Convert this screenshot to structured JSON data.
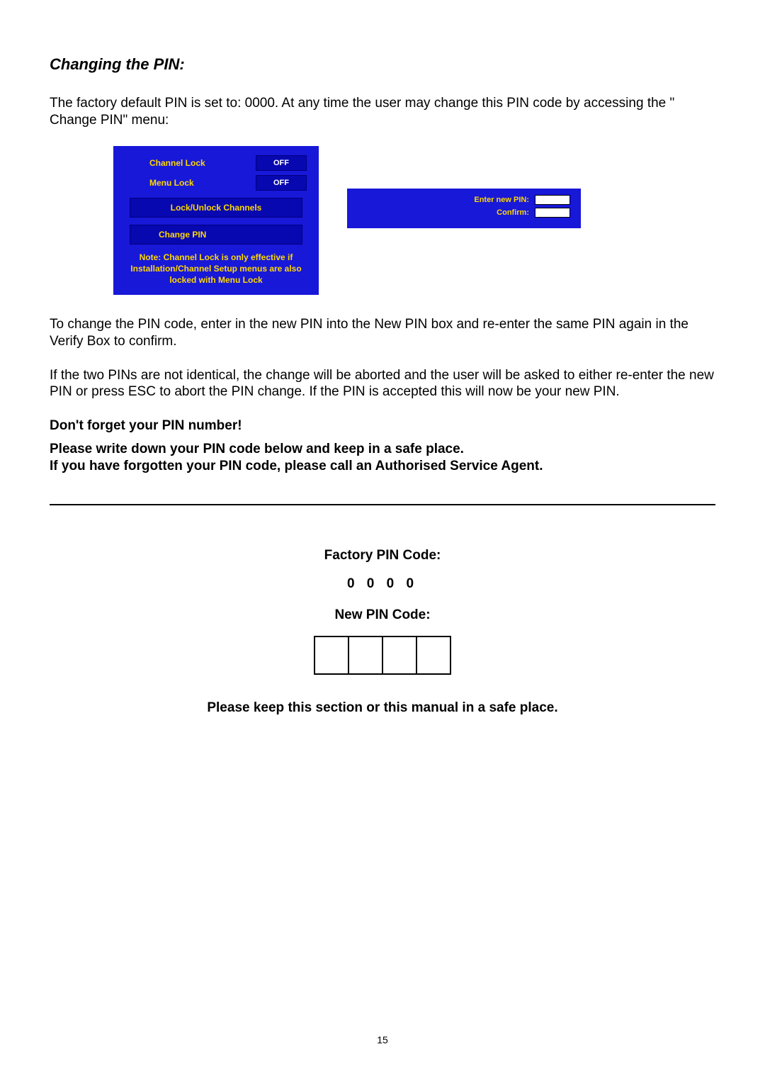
{
  "title": "Changing the PIN:",
  "intro": "The factory default PIN is set to: 0000. At any time the user may change this PIN code by accessing the \" Change PIN\"  menu:",
  "lock_panel": {
    "channel_lock_label": "Channel  Lock",
    "channel_lock_value": "OFF",
    "menu_lock_label": "Menu  Lock",
    "menu_lock_value": "OFF",
    "lock_channels": "Lock/Unlock Channels",
    "change_pin": "Change PIN",
    "note": "Note: Channel Lock is only effective if Installation/Channel Setup menus are also locked with Menu Lock"
  },
  "pin_panel": {
    "enter_label": "Enter  new  PIN:",
    "confirm_label": "Confirm:"
  },
  "para2": "To change the PIN code, enter in the new PIN into the New PIN box and re-enter the same PIN again in the Verify Box to confirm.",
  "para3": "If the two PINs are not identical, the change will be aborted and the user will be asked to either re-enter the new PIN or press ESC to abort the PIN change.  If the PIN is accepted this will now be your new PIN.",
  "warn1": "Don't forget your PIN number!",
  "warn2": "Please write down your PIN code below and keep in a safe place.",
  "warn3": "If you have forgotten your PIN code, please call an Authorised Service Agent.",
  "factory_label": "Factory PIN Code:",
  "factory_code": "0 0 0 0",
  "new_pin_label": "New PIN Code:",
  "keep_safe": "Please keep this section or this manual in a safe place.",
  "page_number": "15",
  "colors": {
    "panel_bg": "#1818d8",
    "panel_fg": "#ffd800",
    "button_bg": "#0808b0"
  }
}
